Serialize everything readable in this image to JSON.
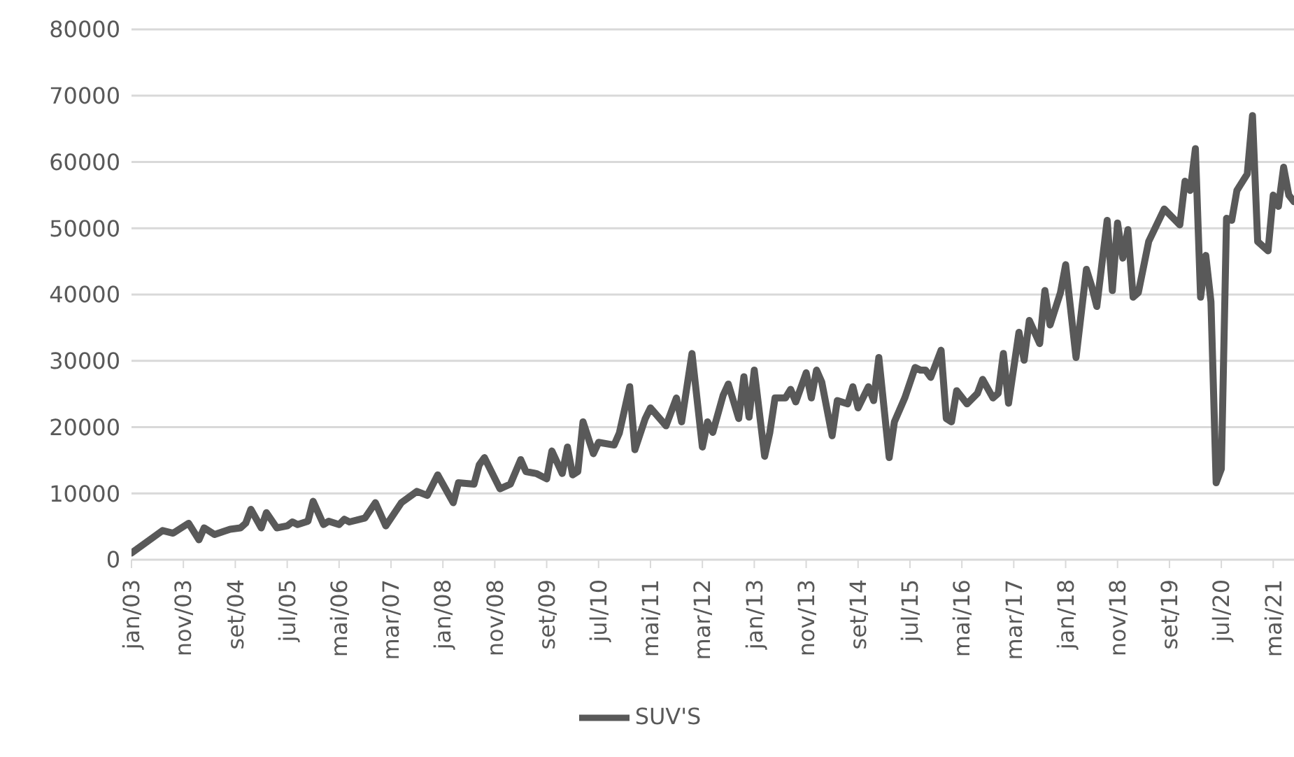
{
  "chart_data": {
    "type": "line",
    "x": [
      "2003-01",
      "2003-07",
      "2003-09",
      "2003-11",
      "2003-12",
      "2004-02",
      "2004-03",
      "2004-05",
      "2004-08",
      "2004-10",
      "2004-11",
      "2004-12",
      "2005-02",
      "2005-03",
      "2005-05",
      "2005-07",
      "2005-08",
      "2005-09",
      "2005-11",
      "2005-12",
      "2006-02",
      "2006-03",
      "2006-05",
      "2006-06",
      "2006-07",
      "2006-10",
      "2006-12",
      "2007-02",
      "2007-05",
      "2007-08",
      "2007-10",
      "2007-12",
      "2008-03",
      "2008-04",
      "2008-07",
      "2008-08",
      "2008-09",
      "2008-12",
      "2009-02",
      "2009-04",
      "2009-05",
      "2009-07",
      "2009-09",
      "2009-10",
      "2009-12",
      "2010-01",
      "2010-02",
      "2010-03",
      "2010-04",
      "2010-06",
      "2010-07",
      "2010-10",
      "2010-11",
      "2011-01",
      "2011-02",
      "2011-04",
      "2011-05",
      "2011-08",
      "2011-10",
      "2011-11",
      "2012-01",
      "2012-03",
      "2012-04",
      "2012-05",
      "2012-07",
      "2012-08",
      "2012-10",
      "2012-11",
      "2012-12",
      "2013-01",
      "2013-03",
      "2013-04",
      "2013-05",
      "2013-07",
      "2013-08",
      "2013-09",
      "2013-11",
      "2013-12",
      "2014-01",
      "2014-02",
      "2014-04",
      "2014-05",
      "2014-07",
      "2014-08",
      "2014-09",
      "2014-11",
      "2014-12",
      "2015-01",
      "2015-03",
      "2015-04",
      "2015-06",
      "2015-08",
      "2015-09",
      "2015-10",
      "2015-11",
      "2016-01",
      "2016-02",
      "2016-03",
      "2016-04",
      "2016-06",
      "2016-08",
      "2016-09",
      "2016-11",
      "2016-12",
      "2017-01",
      "2017-02",
      "2017-04",
      "2017-05",
      "2017-06",
      "2017-08",
      "2017-09",
      "2017-10",
      "2017-12",
      "2018-01",
      "2018-03",
      "2018-05",
      "2018-06",
      "2018-07",
      "2018-09",
      "2018-10",
      "2018-11",
      "2018-12",
      "2019-01",
      "2019-02",
      "2019-03",
      "2019-05",
      "2019-08",
      "2019-11",
      "2019-12",
      "2020-01",
      "2020-02",
      "2020-03",
      "2020-04",
      "2020-05",
      "2020-06",
      "2020-07",
      "2020-08",
      "2020-09",
      "2020-10",
      "2020-12",
      "2021-01",
      "2021-02",
      "2021-04",
      "2021-05",
      "2021-06",
      "2021-07",
      "2021-08",
      "2021-09"
    ],
    "series": [
      {
        "name": "SUV'S",
        "color": "#595959",
        "values": [
          1000,
          4400,
          4000,
          5000,
          5500,
          3000,
          4800,
          3800,
          4600,
          4800,
          5500,
          7600,
          4800,
          7100,
          4800,
          5100,
          5700,
          5300,
          5800,
          8800,
          5300,
          5800,
          5300,
          6100,
          5700,
          6300,
          8600,
          5100,
          8600,
          10300,
          9700,
          12800,
          8600,
          11600,
          11400,
          14300,
          15400,
          10700,
          11400,
          15100,
          13300,
          13000,
          12200,
          16400,
          13000,
          17000,
          12800,
          13300,
          20800,
          16000,
          17700,
          17300,
          19100,
          26100,
          16600,
          21300,
          22900,
          20200,
          24400,
          20800,
          31100,
          17000,
          20800,
          19200,
          24800,
          26500,
          21300,
          27600,
          21500,
          28600,
          15600,
          19200,
          24400,
          24400,
          25700,
          23800,
          28200,
          24400,
          28600,
          26800,
          18700,
          24000,
          23500,
          26100,
          22900,
          26100,
          24000,
          30500,
          15400,
          20800,
          24400,
          29000,
          28600,
          28600,
          27500,
          31600,
          21300,
          20800,
          25500,
          23500,
          25100,
          27200,
          24400,
          25100,
          31100,
          23600,
          34300,
          30100,
          36100,
          32600,
          40600,
          35400,
          40300,
          44500,
          30500,
          43800,
          41300,
          38200,
          51200,
          40600,
          50800,
          45500,
          49800,
          39600,
          40300,
          48000,
          52900,
          50500,
          57100,
          55700,
          62000,
          39600,
          45900,
          38900,
          11600,
          13700,
          51500,
          51200,
          55700,
          58200,
          67000,
          48000,
          46600,
          55000,
          53300,
          59200,
          55000,
          54000
        ]
      }
    ],
    "xlim": [
      "2003-01",
      "2021-09"
    ],
    "xticks": [
      {
        "value": "2003-01",
        "label": "jan/03"
      },
      {
        "value": "2003-11",
        "label": "nov/03"
      },
      {
        "value": "2004-09",
        "label": "set/04"
      },
      {
        "value": "2005-07",
        "label": "jul/05"
      },
      {
        "value": "2006-05",
        "label": "mai/06"
      },
      {
        "value": "2007-03",
        "label": "mar/07"
      },
      {
        "value": "2008-01",
        "label": "jan/08"
      },
      {
        "value": "2008-11",
        "label": "nov/08"
      },
      {
        "value": "2009-09",
        "label": "set/09"
      },
      {
        "value": "2010-07",
        "label": "jul/10"
      },
      {
        "value": "2011-05",
        "label": "mai/11"
      },
      {
        "value": "2012-03",
        "label": "mar/12"
      },
      {
        "value": "2013-01",
        "label": "jan/13"
      },
      {
        "value": "2013-11",
        "label": "nov/13"
      },
      {
        "value": "2014-09",
        "label": "set/14"
      },
      {
        "value": "2015-07",
        "label": "jul/15"
      },
      {
        "value": "2016-05",
        "label": "mai/16"
      },
      {
        "value": "2017-03",
        "label": "mar/17"
      },
      {
        "value": "2018-01",
        "label": "jan/18"
      },
      {
        "value": "2018-11",
        "label": "nov/18"
      },
      {
        "value": "2019-09",
        "label": "set/19"
      },
      {
        "value": "2020-07",
        "label": "jul/20"
      },
      {
        "value": "2021-05",
        "label": "mai/21"
      }
    ],
    "ylim": [
      0,
      80000
    ],
    "yticks": [
      0,
      10000,
      20000,
      30000,
      40000,
      50000,
      60000,
      70000,
      80000
    ],
    "grid": "y",
    "legend": "bottom",
    "marker": "none",
    "line_style": "solid"
  }
}
